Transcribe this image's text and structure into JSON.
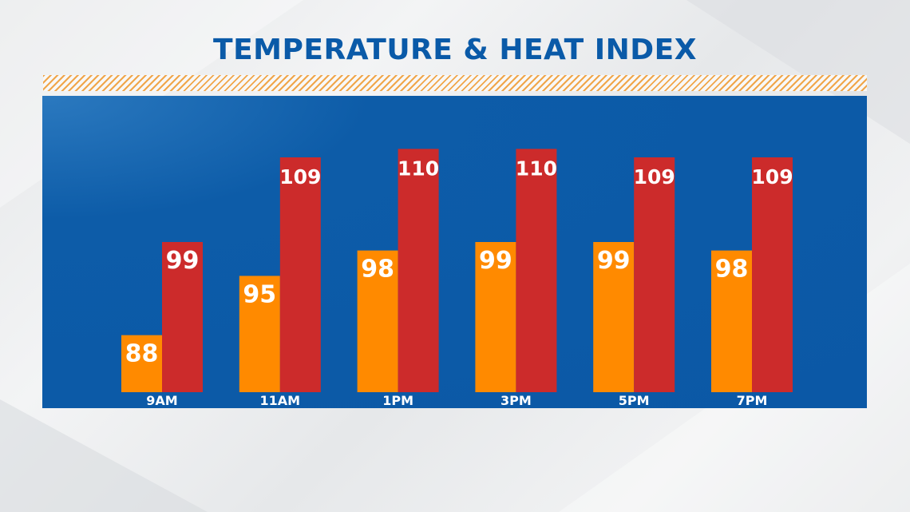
{
  "chart_data": {
    "type": "bar",
    "title": "TEMPERATURE & HEAT INDEX",
    "categories": [
      "9AM",
      "11AM",
      "1PM",
      "3PM",
      "5PM",
      "7PM"
    ],
    "series": [
      {
        "values": [
          88,
          95,
          98,
          99,
          99,
          98
        ],
        "color": "#ff8a00"
      },
      {
        "values": [
          99,
          109,
          110,
          110,
          109,
          109
        ],
        "color": "#cc2b2b"
      }
    ],
    "colors": {
      "panel": "#0b58a6",
      "title": "#0a5aa8",
      "stripe": "#f0a64a",
      "labels": "#ffffff"
    }
  }
}
